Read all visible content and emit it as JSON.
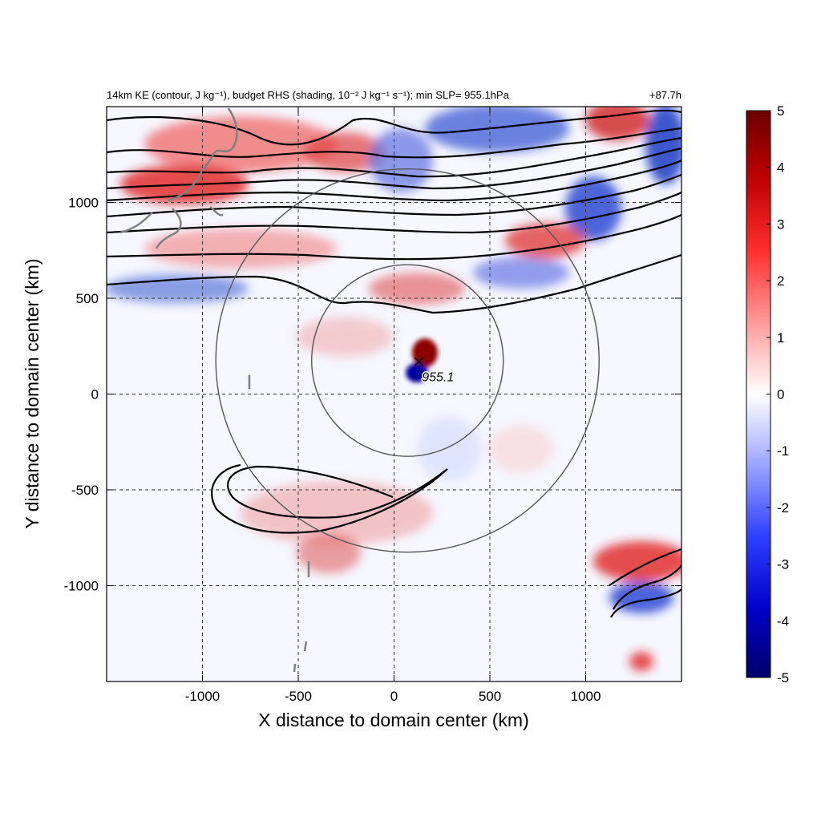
{
  "chart_data": {
    "type": "heatmap",
    "title_left": "14km KE (contour, J kg⁻¹), budget RHS (shading, 10⁻² J kg⁻¹ s⁻¹); min SLP= 955.1hPa",
    "title_right": "+87.7h",
    "xlabel": "X distance to domain center (km)",
    "ylabel": "Y distance to domain center (km)",
    "xlim": [
      -1500,
      1500
    ],
    "ylim": [
      -1500,
      1500
    ],
    "xticks": [
      -1000,
      -500,
      0,
      500,
      1000
    ],
    "yticks": [
      -1000,
      -500,
      0,
      500,
      1000
    ],
    "xtick_labels": [
      "-1000",
      "-500",
      "0",
      "500",
      "1000"
    ],
    "ytick_labels": [
      "-1000",
      "-500",
      "0",
      "500",
      "1000"
    ],
    "grid": true,
    "colorbar": {
      "min": -5,
      "max": 5,
      "ticks": [
        5,
        4,
        3,
        2,
        1,
        0,
        -1,
        -2,
        -3,
        -4,
        -5
      ],
      "labels": [
        "5",
        "4",
        "3",
        "2",
        "1",
        "0",
        "-1",
        "-2",
        "-3",
        "-4",
        "-5"
      ],
      "colors": [
        "#00006b",
        "#0000ff",
        "#ffffff",
        "#ff0000",
        "#6b0000"
      ]
    },
    "storm_center": {
      "x": 70,
      "y": 175,
      "label": "955.1",
      "marker": "×"
    },
    "circles_km": [
      {
        "cx": 70,
        "cy": 175,
        "r": 500
      },
      {
        "cx": 70,
        "cy": 175,
        "r": 1000
      }
    ],
    "colors": {
      "positive": "#e03030",
      "negative": "#2040d0",
      "contour": "#000000",
      "coastline": "#808080",
      "circle": "#555555"
    }
  }
}
